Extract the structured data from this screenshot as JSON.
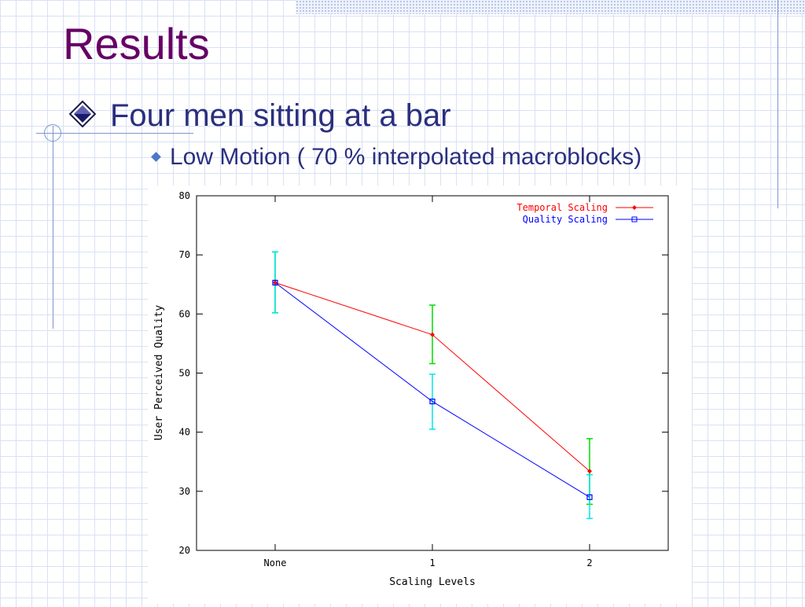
{
  "slide": {
    "title": "Results",
    "bullet_level1": "Four men sitting at a bar",
    "bullet_level2": "Low Motion ( 70 % interpolated macroblocks)"
  },
  "colors": {
    "title": "#660066",
    "text": "#2a2f7f",
    "temporal_line": "#ff0000",
    "quality_line": "#0000ff",
    "temporal_errorbar": "#00dd00",
    "quality_errorbar": "#00e5ee"
  },
  "icons": {
    "bullet_level1": "diamond-bullet-icon",
    "bullet_level2": "small-diamond-icon"
  },
  "chart_data": {
    "type": "line",
    "categories": [
      "None",
      "1",
      "2"
    ],
    "xlabel": "Scaling Levels",
    "ylabel": "User Perceived Quality",
    "ylim": [
      20,
      80
    ],
    "yticks": [
      20,
      30,
      40,
      50,
      60,
      70,
      80
    ],
    "grid": false,
    "legend_position": "top-right",
    "series": [
      {
        "name": "Temporal Scaling",
        "color": "#ff0000",
        "errorbar_color": "#00dd00",
        "marker": "diamond",
        "values": [
          65.3,
          56.5,
          33.4
        ],
        "err_low": [
          60.2,
          51.6,
          27.8
        ],
        "err_high": [
          70.5,
          61.5,
          38.9
        ]
      },
      {
        "name": "Quality Scaling",
        "color": "#0000ff",
        "errorbar_color": "#00e5ee",
        "marker": "square",
        "values": [
          65.3,
          45.2,
          29.0
        ],
        "err_low": [
          60.2,
          40.5,
          25.4
        ],
        "err_high": [
          70.5,
          49.8,
          32.8
        ]
      }
    ]
  }
}
